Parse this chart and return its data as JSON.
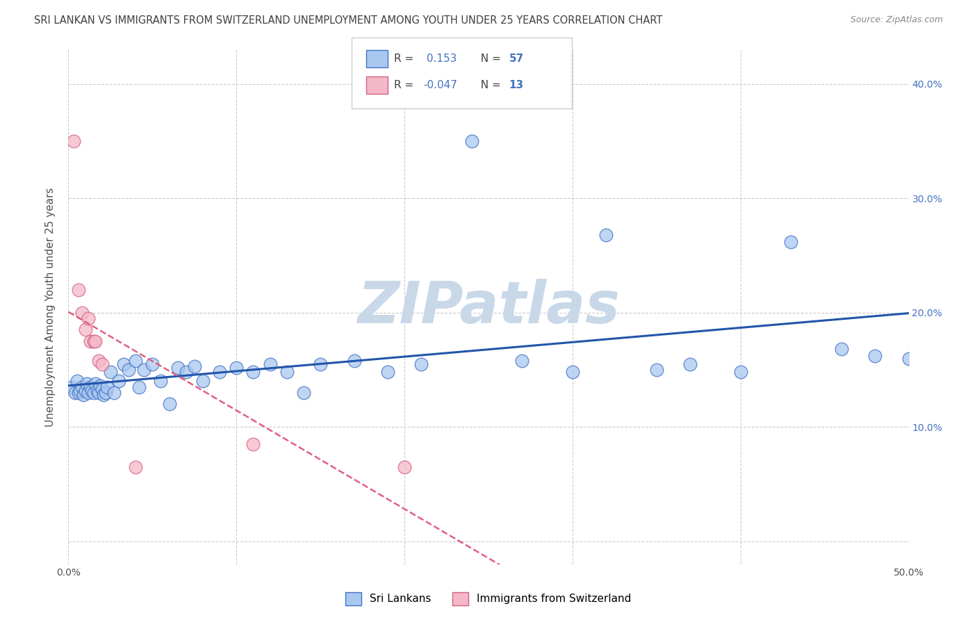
{
  "title": "SRI LANKAN VS IMMIGRANTS FROM SWITZERLAND UNEMPLOYMENT AMONG YOUTH UNDER 25 YEARS CORRELATION CHART",
  "source": "Source: ZipAtlas.com",
  "ylabel": "Unemployment Among Youth under 25 years",
  "xlim": [
    0,
    0.5
  ],
  "ylim": [
    -0.02,
    0.43
  ],
  "yticks": [
    0.0,
    0.1,
    0.2,
    0.3,
    0.4
  ],
  "ytick_labels": [
    "",
    "10.0%",
    "20.0%",
    "30.0%",
    "40.0%"
  ],
  "xticks": [
    0.0,
    0.1,
    0.2,
    0.3,
    0.4,
    0.5
  ],
  "xtick_labels": [
    "0.0%",
    "",
    "",
    "",
    "",
    "50.0%"
  ],
  "sri_lankan_R": 0.153,
  "sri_lankan_N": 57,
  "swiss_immigrant_R": -0.047,
  "swiss_immigrant_N": 13,
  "sri_lankan_color": "#a8c8f0",
  "sri_lankan_edge": "#4472c4",
  "swiss_color": "#f4b8c8",
  "swiss_edge": "#d46080",
  "trend_sri_color": "#2255aa",
  "trend_swiss_color": "#e06080",
  "background_color": "#ffffff",
  "grid_color": "#cccccc",
  "watermark": "ZIPatlas",
  "watermark_color": "#c8d8e8",
  "title_color": "#404040",
  "axis_label_color": "#4472c4",
  "sri_lankan_x": [
    0.002,
    0.004,
    0.005,
    0.006,
    0.007,
    0.008,
    0.009,
    0.01,
    0.011,
    0.012,
    0.013,
    0.014,
    0.015,
    0.016,
    0.017,
    0.018,
    0.019,
    0.02,
    0.021,
    0.022,
    0.023,
    0.025,
    0.027,
    0.03,
    0.033,
    0.036,
    0.04,
    0.042,
    0.045,
    0.05,
    0.055,
    0.06,
    0.065,
    0.07,
    0.075,
    0.08,
    0.09,
    0.1,
    0.11,
    0.12,
    0.13,
    0.14,
    0.15,
    0.17,
    0.19,
    0.21,
    0.24,
    0.27,
    0.3,
    0.32,
    0.35,
    0.37,
    0.4,
    0.43,
    0.46,
    0.48,
    0.5
  ],
  "sri_lankan_y": [
    0.135,
    0.13,
    0.14,
    0.13,
    0.132,
    0.135,
    0.128,
    0.132,
    0.138,
    0.13,
    0.135,
    0.132,
    0.13,
    0.138,
    0.132,
    0.13,
    0.136,
    0.133,
    0.128,
    0.13,
    0.135,
    0.148,
    0.13,
    0.14,
    0.155,
    0.15,
    0.158,
    0.135,
    0.15,
    0.155,
    0.14,
    0.12,
    0.152,
    0.148,
    0.153,
    0.14,
    0.148,
    0.152,
    0.148,
    0.155,
    0.148,
    0.13,
    0.155,
    0.158,
    0.148,
    0.155,
    0.35,
    0.158,
    0.148,
    0.268,
    0.15,
    0.155,
    0.148,
    0.262,
    0.168,
    0.162,
    0.16
  ],
  "swiss_immigrant_x": [
    0.003,
    0.006,
    0.008,
    0.01,
    0.012,
    0.013,
    0.015,
    0.016,
    0.018,
    0.02,
    0.04,
    0.11,
    0.2
  ],
  "swiss_immigrant_y": [
    0.35,
    0.22,
    0.2,
    0.185,
    0.195,
    0.175,
    0.175,
    0.175,
    0.158,
    0.155,
    0.065,
    0.085,
    0.065
  ]
}
